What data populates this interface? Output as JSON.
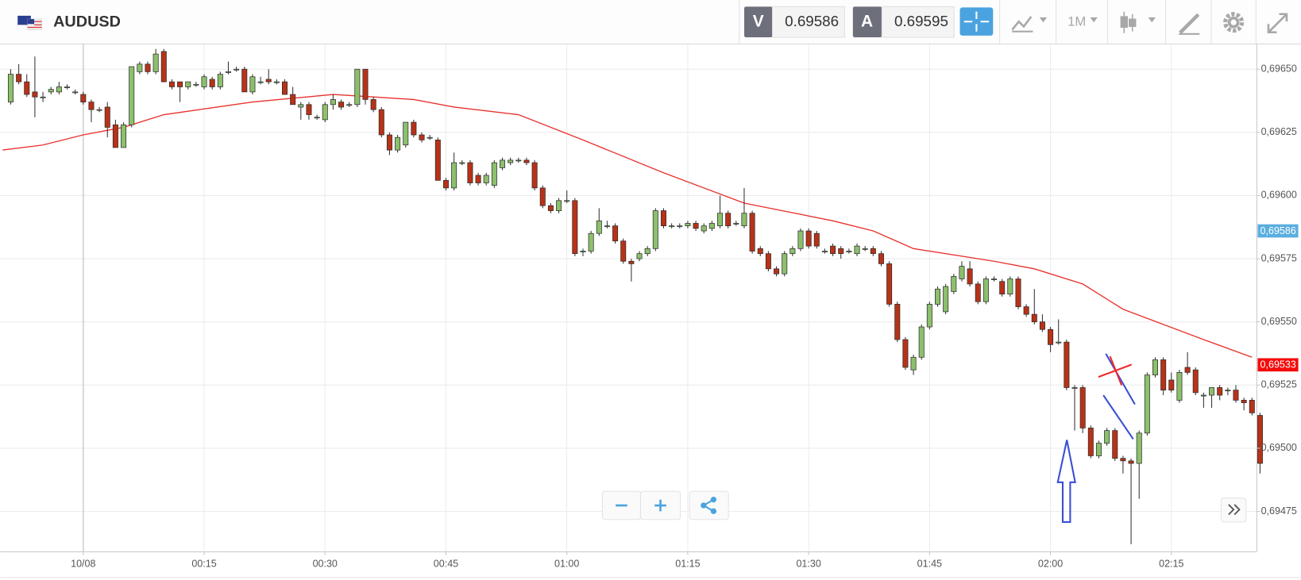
{
  "header": {
    "symbol": "AUDUSD",
    "sell_label": "V",
    "sell_price": "0.69586",
    "buy_label": "A",
    "buy_price": "0.69595",
    "timeframe": "1M"
  },
  "chart_data": {
    "type": "candlestick",
    "up_color": "#8cc06c",
    "down_color": "#b83218",
    "xlim": [
      -10.3,
      145.6
    ],
    "ylim": [
      0.69459,
      0.6966
    ],
    "xticks": [
      {
        "value": 0,
        "label": "10/08"
      },
      {
        "value": 15,
        "label": "00:15"
      },
      {
        "value": 30,
        "label": "00:30"
      },
      {
        "value": 45,
        "label": "00:45"
      },
      {
        "value": 60,
        "label": "01:00"
      },
      {
        "value": 75,
        "label": "01:15"
      },
      {
        "value": 90,
        "label": "01:30"
      },
      {
        "value": 105,
        "label": "01:45"
      },
      {
        "value": 120,
        "label": "02:00"
      },
      {
        "value": 135,
        "label": "02:15"
      }
    ],
    "yticks": [
      {
        "value": 0.69475,
        "label": "0,69475"
      },
      {
        "value": 0.695,
        "label": "0,69500"
      },
      {
        "value": 0.69525,
        "label": "0,69525"
      },
      {
        "value": 0.6955,
        "label": "0,69550"
      },
      {
        "value": 0.69575,
        "label": "0,69575"
      },
      {
        "value": 0.696,
        "label": "0,69600"
      },
      {
        "value": 0.69625,
        "label": "0,69625"
      },
      {
        "value": 0.6965,
        "label": "0,69650"
      }
    ],
    "grid": true,
    "x": [
      -9,
      -8,
      -7,
      -6,
      -5,
      -4,
      -3,
      -2,
      -1,
      0,
      1,
      2,
      3,
      4,
      5,
      6,
      7,
      8,
      9,
      10,
      11,
      12,
      13,
      14,
      15,
      16,
      17,
      18,
      19,
      20,
      21,
      22,
      23,
      24,
      25,
      26,
      27,
      28,
      29,
      30,
      31,
      32,
      33,
      34,
      35,
      36,
      37,
      38,
      39,
      40,
      41,
      42,
      43,
      44,
      45,
      46,
      47,
      48,
      49,
      50,
      51,
      52,
      53,
      54,
      55,
      56,
      57,
      58,
      59,
      60,
      61,
      62,
      63,
      64,
      65,
      66,
      67,
      68,
      69,
      70,
      71,
      72,
      73,
      74,
      75,
      76,
      77,
      78,
      79,
      80,
      81,
      82,
      83,
      84,
      85,
      86,
      87,
      88,
      89,
      90,
      91,
      92,
      93,
      94,
      95,
      96,
      97,
      98,
      99,
      100,
      101,
      102,
      103,
      104,
      105,
      106,
      107,
      108,
      109,
      110,
      111,
      112,
      113,
      114,
      115,
      116,
      117,
      118,
      119,
      120,
      121,
      122,
      123,
      124,
      125,
      126,
      127,
      128,
      129,
      130,
      131,
      132,
      133,
      134,
      135,
      136,
      137,
      138,
      139,
      140,
      141,
      142,
      143,
      144,
      145,
      146
    ],
    "open": [
      0.69637,
      0.69648,
      0.69645,
      0.69641,
      0.69639,
      0.69641,
      0.69641,
      0.69643,
      0.69641,
      0.6964,
      0.69637,
      0.69634,
      0.69635,
      0.69628,
      0.69619,
      0.69628,
      0.69649,
      0.69652,
      0.69649,
      0.69657,
      0.69645,
      0.69645,
      0.69643,
      0.69644,
      0.69643,
      0.69646,
      0.69643,
      0.69649,
      0.6965,
      0.6965,
      0.69641,
      0.69645,
      0.69646,
      0.69645,
      0.69645,
      0.6964,
      0.69635,
      0.69636,
      0.69631,
      0.6963,
      0.69636,
      0.69637,
      0.69636,
      0.69636,
      0.6965,
      0.69638,
      0.69634,
      0.69624,
      0.69618,
      0.6962,
      0.69629,
      0.69624,
      0.69623,
      0.69622,
      0.69606,
      0.69603,
      0.69613,
      0.69613,
      0.69608,
      0.69605,
      0.69604,
      0.69611,
      0.69613,
      0.69614,
      0.69614,
      0.69613,
      0.69603,
      0.69596,
      0.69594,
      0.69598,
      0.69598,
      0.69578,
      0.69578,
      0.69585,
      0.69588,
      0.69588,
      0.69582,
      0.69574,
      0.69575,
      0.69577,
      0.69579,
      0.69594,
      0.69588,
      0.69588,
      0.69588,
      0.69589,
      0.69586,
      0.69587,
      0.69588,
      0.69593,
      0.69589,
      0.69588,
      0.69593,
      0.69579,
      0.69577,
      0.69571,
      0.69569,
      0.69577,
      0.69579,
      0.69586,
      0.69585,
      0.69578,
      0.6958,
      0.69579,
      0.69578,
      0.69577,
      0.69579,
      0.69579,
      0.69577,
      0.69573,
      0.69557,
      0.69543,
      0.69531,
      0.69536,
      0.69548,
      0.69557,
      0.69554,
      0.69562,
      0.69567,
      0.69571,
      0.69565,
      0.69558,
      0.69567,
      0.69566,
      0.69561,
      0.69567,
      0.69556,
      0.69553,
      0.6955,
      0.69547,
      0.69542,
      0.69542,
      0.69524,
      0.69524,
      0.69508,
      0.69497,
      0.69502,
      0.69507,
      0.69496,
      0.69495,
      0.69494,
      0.69506,
      0.69529,
      0.69535,
      0.69527,
      0.69519,
      0.69532,
      0.69531,
      0.69521,
      0.69521,
      0.69524,
      0.69523,
      0.69523,
      0.69519,
      0.69519,
      0.69513
    ],
    "high": [
      0.6965,
      0.69652,
      0.69648,
      0.69655,
      0.69641,
      0.69643,
      0.69645,
      0.69644,
      0.69642,
      0.69641,
      0.69638,
      0.69635,
      0.69637,
      0.6963,
      0.69629,
      0.69651,
      0.69653,
      0.69653,
      0.69658,
      0.69658,
      0.69646,
      0.69645,
      0.69645,
      0.69645,
      0.69648,
      0.69647,
      0.69649,
      0.69653,
      0.69651,
      0.69651,
      0.69648,
      0.69647,
      0.6965,
      0.69646,
      0.69646,
      0.69643,
      0.69637,
      0.69637,
      0.69632,
      0.69637,
      0.6964,
      0.69638,
      0.69637,
      0.6965,
      0.6965,
      0.69639,
      0.69635,
      0.69625,
      0.69624,
      0.69629,
      0.6963,
      0.69625,
      0.69624,
      0.69623,
      0.69607,
      0.69617,
      0.69614,
      0.69614,
      0.69609,
      0.69609,
      0.69614,
      0.69615,
      0.69615,
      0.69615,
      0.69615,
      0.69614,
      0.69604,
      0.69597,
      0.69599,
      0.69602,
      0.69599,
      0.69579,
      0.69586,
      0.69595,
      0.6959,
      0.69589,
      0.69583,
      0.69575,
      0.69578,
      0.6958,
      0.69595,
      0.69595,
      0.69589,
      0.69589,
      0.6959,
      0.6959,
      0.69589,
      0.6959,
      0.696,
      0.69594,
      0.6959,
      0.69603,
      0.69594,
      0.6958,
      0.69578,
      0.69572,
      0.69578,
      0.6958,
      0.69587,
      0.69587,
      0.69586,
      0.69579,
      0.69581,
      0.6958,
      0.69579,
      0.69581,
      0.6958,
      0.6958,
      0.69578,
      0.69574,
      0.69558,
      0.69544,
      0.69537,
      0.69549,
      0.69558,
      0.69564,
      0.69565,
      0.69569,
      0.69574,
      0.69574,
      0.69566,
      0.69568,
      0.69568,
      0.69567,
      0.69568,
      0.69568,
      0.69557,
      0.69563,
      0.69553,
      0.69548,
      0.69551,
      0.69543,
      0.69525,
      0.69525,
      0.69509,
      0.69503,
      0.69508,
      0.69508,
      0.69497,
      0.69496,
      0.69507,
      0.6953,
      0.69536,
      0.69536,
      0.6953,
      0.69531,
      0.69538,
      0.69532,
      0.69522,
      0.69524,
      0.69525,
      0.69524,
      0.69525,
      0.6952,
      0.6952,
      0.69514
    ],
    "low": [
      0.69636,
      0.69644,
      0.69639,
      0.69631,
      0.69637,
      0.6964,
      0.6964,
      0.69642,
      0.6964,
      0.69636,
      0.69629,
      0.69633,
      0.69623,
      0.69619,
      0.69619,
      0.69627,
      0.69648,
      0.69648,
      0.69648,
      0.69645,
      0.69642,
      0.69637,
      0.69642,
      0.69643,
      0.69642,
      0.69642,
      0.69642,
      0.69648,
      0.69649,
      0.69641,
      0.6964,
      0.69644,
      0.69644,
      0.69644,
      0.6964,
      0.69636,
      0.6963,
      0.6963,
      0.6963,
      0.69629,
      0.69634,
      0.69634,
      0.69635,
      0.69635,
      0.69636,
      0.69633,
      0.69623,
      0.69616,
      0.69617,
      0.69619,
      0.69623,
      0.69621,
      0.69622,
      0.69606,
      0.69602,
      0.69602,
      0.69612,
      0.69604,
      0.69604,
      0.69604,
      0.69603,
      0.6961,
      0.69612,
      0.69613,
      0.69612,
      0.69602,
      0.69595,
      0.69593,
      0.69593,
      0.69597,
      0.69576,
      0.69576,
      0.69577,
      0.69584,
      0.69587,
      0.69581,
      0.69573,
      0.69566,
      0.69574,
      0.69576,
      0.69578,
      0.69587,
      0.69587,
      0.69587,
      0.69587,
      0.69586,
      0.69585,
      0.69586,
      0.69587,
      0.69587,
      0.69588,
      0.69587,
      0.69577,
      0.69576,
      0.6957,
      0.69568,
      0.69568,
      0.69576,
      0.69578,
      0.69579,
      0.69579,
      0.69577,
      0.69576,
      0.69575,
      0.69577,
      0.69576,
      0.69578,
      0.69576,
      0.69572,
      0.69556,
      0.69542,
      0.69531,
      0.69529,
      0.69535,
      0.69547,
      0.69556,
      0.69553,
      0.69561,
      0.69566,
      0.69564,
      0.69557,
      0.69557,
      0.69566,
      0.6956,
      0.6956,
      0.69555,
      0.69552,
      0.69549,
      0.69546,
      0.69538,
      0.69541,
      0.69523,
      0.69507,
      0.69506,
      0.69496,
      0.69496,
      0.69501,
      0.69495,
      0.6949,
      0.69462,
      0.6948,
      0.69505,
      0.69528,
      0.69521,
      0.69522,
      0.69518,
      0.69529,
      0.69521,
      0.69516,
      0.69516,
      0.69519,
      0.69521,
      0.69518,
      0.69515,
      0.69513,
      0.6949
    ],
    "close": [
      0.69648,
      0.69645,
      0.6964,
      0.69639,
      0.69639,
      0.69642,
      0.69643,
      0.69643,
      0.69641,
      0.69637,
      0.69634,
      0.69634,
      0.69627,
      0.69619,
      0.69628,
      0.69651,
      0.69652,
      0.69649,
      0.69656,
      0.69645,
      0.69643,
      0.69643,
      0.69645,
      0.69644,
      0.69647,
      0.69643,
      0.69648,
      0.69649,
      0.6965,
      0.69641,
      0.69647,
      0.69645,
      0.69645,
      0.69645,
      0.6964,
      0.69636,
      0.69636,
      0.69632,
      0.69631,
      0.69636,
      0.69638,
      0.69635,
      0.69636,
      0.6965,
      0.69638,
      0.69634,
      0.69624,
      0.69618,
      0.69623,
      0.69629,
      0.69624,
      0.69622,
      0.69623,
      0.69606,
      0.69603,
      0.69613,
      0.69613,
      0.69605,
      0.69605,
      0.69608,
      0.69613,
      0.69614,
      0.69614,
      0.69614,
      0.69613,
      0.69603,
      0.69596,
      0.69594,
      0.69598,
      0.69598,
      0.69577,
      0.69578,
      0.69585,
      0.6959,
      0.69588,
      0.69582,
      0.69574,
      0.69573,
      0.69577,
      0.69579,
      0.69594,
      0.69588,
      0.69588,
      0.69588,
      0.69589,
      0.69587,
      0.69588,
      0.69589,
      0.69593,
      0.69588,
      0.69589,
      0.69593,
      0.69578,
      0.69577,
      0.69571,
      0.69569,
      0.69577,
      0.69579,
      0.69586,
      0.6958,
      0.6958,
      0.69578,
      0.69577,
      0.69577,
      0.69578,
      0.6958,
      0.69579,
      0.69577,
      0.69573,
      0.69557,
      0.69543,
      0.69532,
      0.69536,
      0.69548,
      0.69557,
      0.69563,
      0.69564,
      0.69568,
      0.69572,
      0.69565,
      0.69558,
      0.69567,
      0.69567,
      0.69561,
      0.69567,
      0.69556,
      0.69553,
      0.6955,
      0.69547,
      0.69541,
      0.69542,
      0.69524,
      0.69524,
      0.69508,
      0.69497,
      0.69502,
      0.69507,
      0.69496,
      0.69495,
      0.69494,
      0.69506,
      0.69529,
      0.69535,
      0.69523,
      0.69523,
      0.6953,
      0.6953,
      0.69522,
      0.69521,
      0.69524,
      0.69521,
      0.69523,
      0.69519,
      0.69518,
      0.69514,
      0.69494
    ],
    "moving_average": {
      "color": "#e8322d",
      "x": [
        -10,
        -5,
        0,
        5,
        10,
        21,
        31,
        36,
        41,
        46,
        54,
        62,
        72,
        82,
        93,
        98,
        103,
        113,
        118,
        124,
        129,
        134,
        139,
        145
      ],
      "values": [
        0.69618,
        0.6962,
        0.69624,
        0.69627,
        0.69632,
        0.69637,
        0.6964,
        0.69639,
        0.69638,
        0.69635,
        0.69632,
        0.69622,
        0.69609,
        0.69597,
        0.6959,
        0.69586,
        0.69579,
        0.69574,
        0.69571,
        0.69565,
        0.69555,
        0.69549,
        0.69543,
        0.69536
      ]
    },
    "price_tags": [
      {
        "value": 0.69586,
        "label": "0,69586",
        "color": "#5aaee0"
      },
      {
        "value": 0.69533,
        "label": "0,69533",
        "color": "#f40b0b"
      }
    ]
  }
}
